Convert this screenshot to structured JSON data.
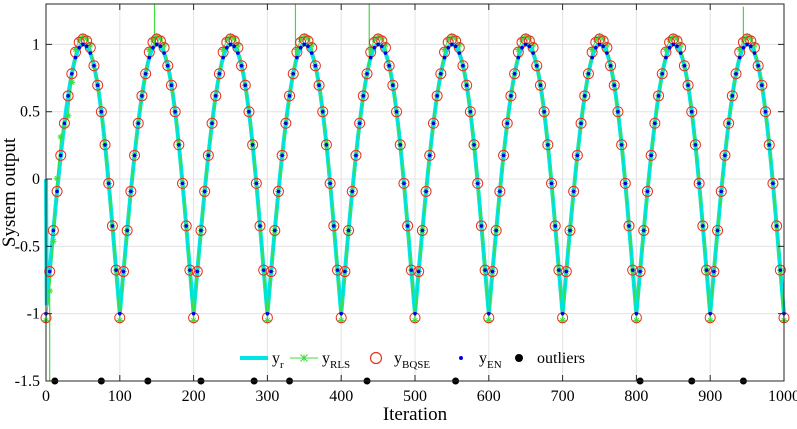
{
  "chart_data": {
    "type": "line",
    "title": "",
    "xlabel": "Iteration",
    "ylabel": "System output",
    "xlim": [
      0,
      1000
    ],
    "ylim": [
      -1.5,
      1.3
    ],
    "x_ticks": [
      0,
      100,
      200,
      300,
      400,
      500,
      600,
      700,
      800,
      900,
      1000
    ],
    "x_tick_labels": [
      "0",
      "100",
      "200",
      "300",
      "400",
      "500",
      "600",
      "700",
      "800",
      "900",
      "1000"
    ],
    "y_ticks": [
      1,
      0.5,
      0,
      -0.5,
      -1,
      -1.5
    ],
    "y_tick_labels": [
      "1",
      "0.5",
      "0",
      "-0.5",
      "-1",
      "-1.5"
    ],
    "grid": true,
    "reference": {
      "period": 100,
      "rise_start": 0,
      "peak": 1,
      "trough": -1,
      "fall_start": 50,
      "peak_at": 50,
      "trough_at": 100,
      "step": 5
    },
    "series": [
      {
        "name": "y_r",
        "label_main": "y",
        "label_sub": "r",
        "style": "thick line",
        "color": "#00e5e5"
      },
      {
        "name": "y_RLS",
        "label_main": "y",
        "label_sub": "RLS",
        "style": "line with star markers",
        "color": "#3ddc3d"
      },
      {
        "name": "y_BQSE",
        "label_main": "y",
        "label_sub": "BQSE",
        "style": "open circle markers",
        "color": "#e8321e"
      },
      {
        "name": "y_EN",
        "label_main": "y",
        "label_sub": "EN",
        "style": "dot markers",
        "color": "#0000e0"
      },
      {
        "name": "outliers",
        "label_main": "outliers",
        "label_sub": "",
        "style": "filled circle markers",
        "color": "#000000"
      }
    ],
    "outliers": {
      "x": [
        12,
        75,
        138,
        210,
        282,
        330,
        435,
        555,
        805,
        875,
        945
      ],
      "y": [
        -1.5,
        -1.5,
        -1.5,
        -1.5,
        -1.5,
        -1.5,
        -1.5,
        -1.5,
        -1.5,
        -1.5,
        -1.5
      ]
    },
    "rls_spikes": [
      {
        "x": 5,
        "y": -1.5
      },
      {
        "x": 147,
        "y": 1.3
      },
      {
        "x": 338,
        "y": 1.3
      },
      {
        "x": 438,
        "y": 1.3
      },
      {
        "x": 945,
        "y": 1.28
      }
    ],
    "legend_position": "bottom-center"
  }
}
